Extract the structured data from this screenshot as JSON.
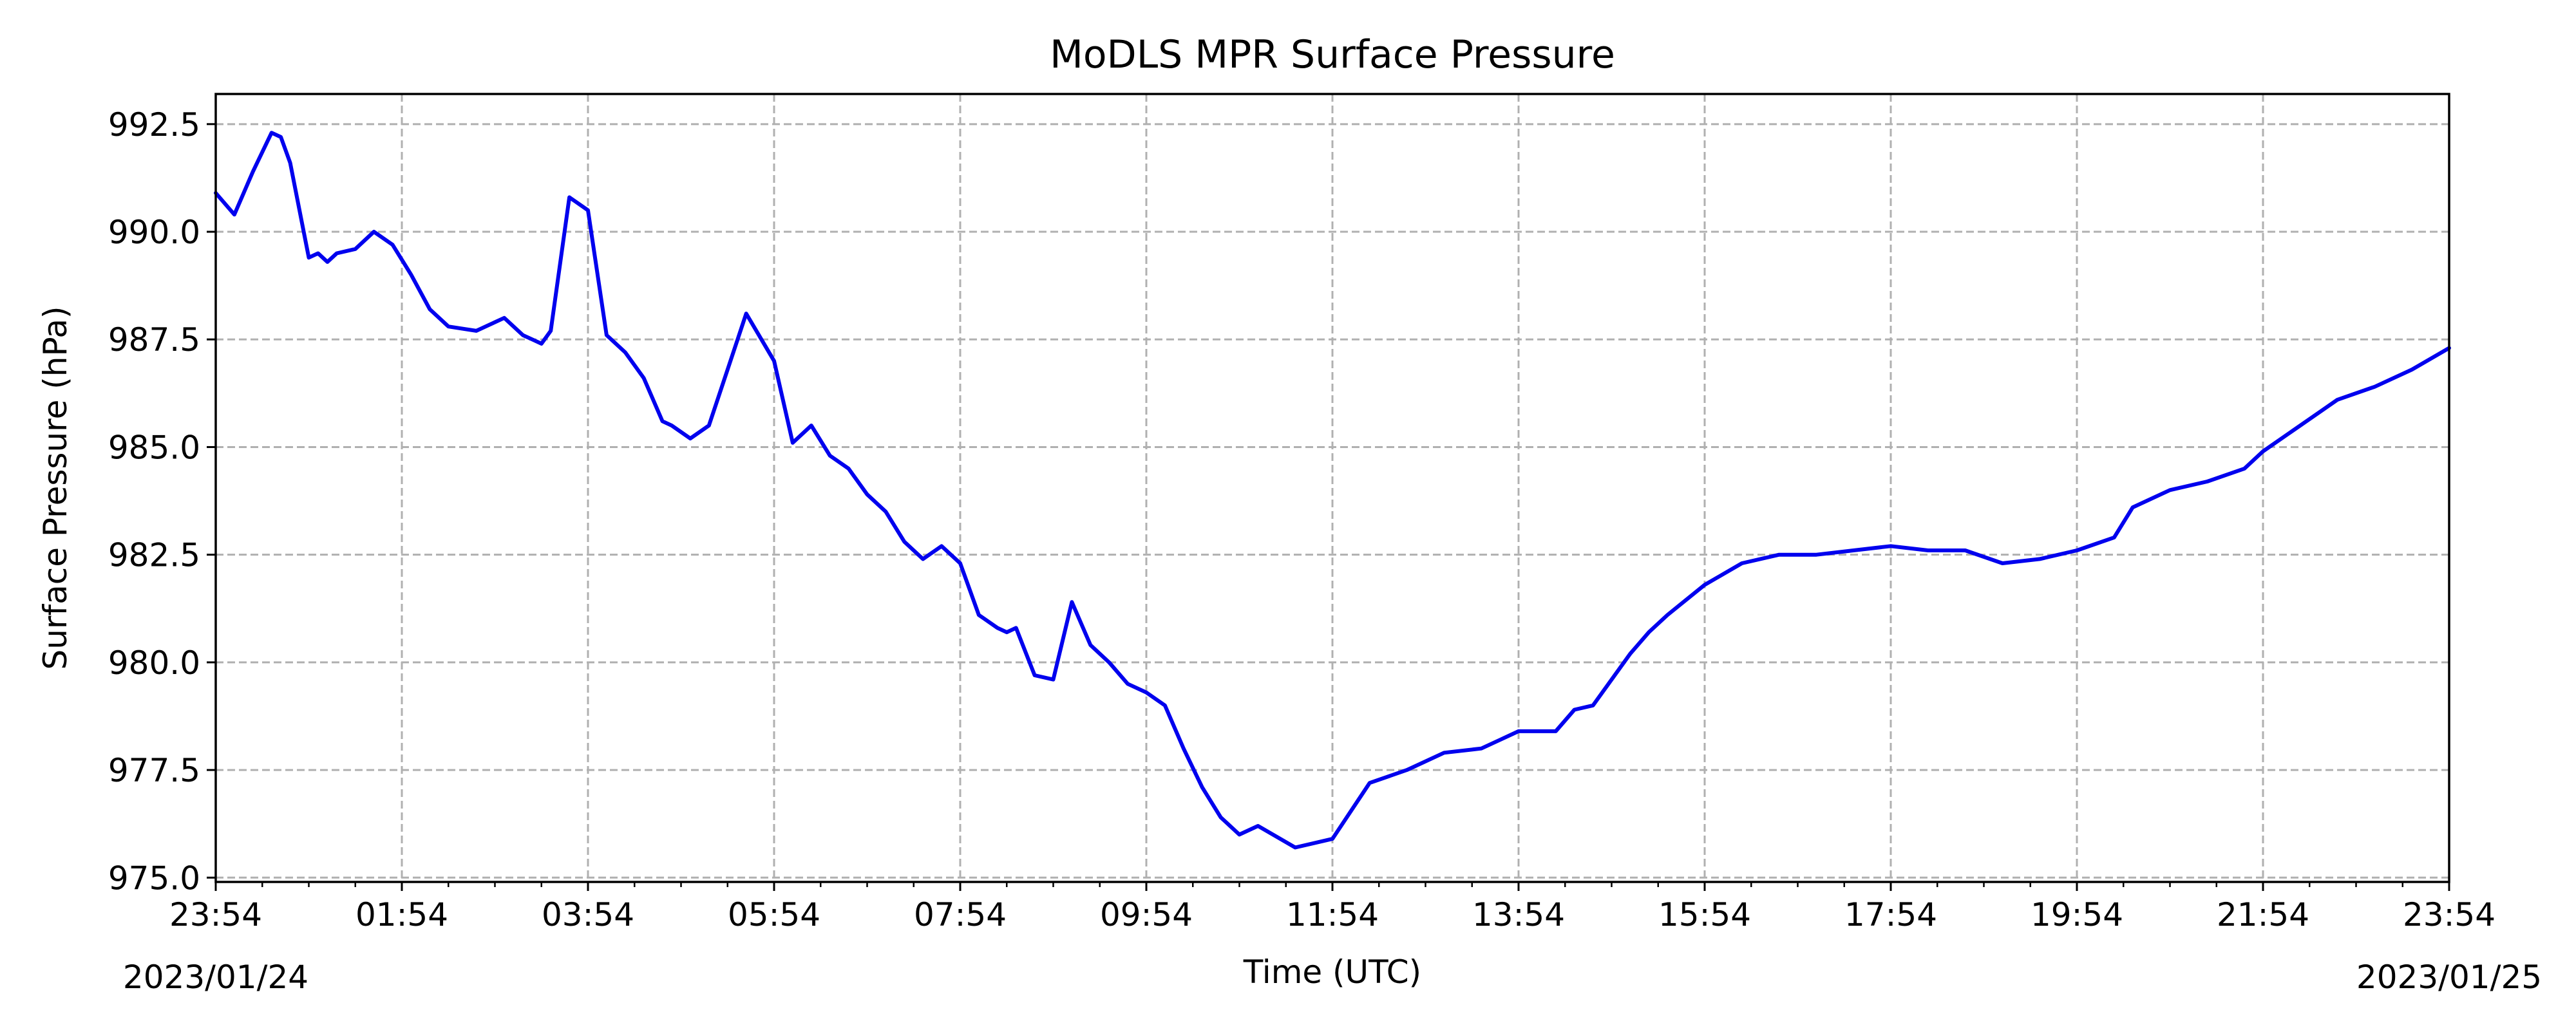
{
  "chart_data": {
    "type": "line",
    "title": "MoDLS MPR Surface Pressure",
    "xlabel": "Time (UTC)",
    "ylabel": "Surface Pressure (hPa)",
    "x_tick_labels": [
      "23:54",
      "01:54",
      "03:54",
      "05:54",
      "07:54",
      "09:54",
      "11:54",
      "13:54",
      "15:54",
      "17:54",
      "19:54",
      "21:54",
      "23:54"
    ],
    "date_labels": {
      "start": "2023/01/24",
      "end": "2023/01/25"
    },
    "y_tick_labels": [
      "975.0",
      "977.5",
      "980.0",
      "982.5",
      "985.0",
      "987.5",
      "990.0",
      "992.5"
    ],
    "xlim": [
      "2023-01-24T23:54",
      "2023-01-25T23:54"
    ],
    "ylim": [
      974.9,
      993.2
    ],
    "grid": true,
    "line_color": "#0000ee",
    "series": [
      {
        "x": [
          "2023-01-24T23:54",
          "2023-01-25T00:06",
          "2023-01-25T00:18",
          "2023-01-25T00:30",
          "2023-01-25T00:36",
          "2023-01-25T00:42",
          "2023-01-25T00:54",
          "2023-01-25T01:00",
          "2023-01-25T01:06",
          "2023-01-25T01:12",
          "2023-01-25T01:24",
          "2023-01-25T01:36",
          "2023-01-25T01:48",
          "2023-01-25T02:00",
          "2023-01-25T02:12",
          "2023-01-25T02:24",
          "2023-01-25T02:42",
          "2023-01-25T02:54",
          "2023-01-25T03:00",
          "2023-01-25T03:12",
          "2023-01-25T03:18",
          "2023-01-25T03:24",
          "2023-01-25T03:30",
          "2023-01-25T03:42",
          "2023-01-25T03:54",
          "2023-01-25T04:06",
          "2023-01-25T04:18",
          "2023-01-25T04:30",
          "2023-01-25T04:42",
          "2023-01-25T04:48",
          "2023-01-25T05:00",
          "2023-01-25T05:12",
          "2023-01-25T05:24",
          "2023-01-25T05:36",
          "2023-01-25T05:54",
          "2023-01-25T06:06",
          "2023-01-25T06:18",
          "2023-01-25T06:30",
          "2023-01-25T06:42",
          "2023-01-25T06:54",
          "2023-01-25T07:06",
          "2023-01-25T07:18",
          "2023-01-25T07:30",
          "2023-01-25T07:42",
          "2023-01-25T07:54",
          "2023-01-25T08:06",
          "2023-01-25T08:18",
          "2023-01-25T08:24",
          "2023-01-25T08:30",
          "2023-01-25T08:42",
          "2023-01-25T08:54",
          "2023-01-25T09:06",
          "2023-01-25T09:18",
          "2023-01-25T09:30",
          "2023-01-25T09:42",
          "2023-01-25T09:54",
          "2023-01-25T10:06",
          "2023-01-25T10:18",
          "2023-01-25T10:30",
          "2023-01-25T10:42",
          "2023-01-25T10:54",
          "2023-01-25T11:06",
          "2023-01-25T11:30",
          "2023-01-25T11:54",
          "2023-01-25T12:18",
          "2023-01-25T12:42",
          "2023-01-25T13:06",
          "2023-01-25T13:30",
          "2023-01-25T13:42",
          "2023-01-25T13:54",
          "2023-01-25T14:18",
          "2023-01-25T14:30",
          "2023-01-25T14:42",
          "2023-01-25T14:54",
          "2023-01-25T15:06",
          "2023-01-25T15:18",
          "2023-01-25T15:30",
          "2023-01-25T15:54",
          "2023-01-25T16:18",
          "2023-01-25T16:42",
          "2023-01-25T17:06",
          "2023-01-25T17:30",
          "2023-01-25T17:54",
          "2023-01-25T18:18",
          "2023-01-25T18:42",
          "2023-01-25T19:06",
          "2023-01-25T19:30",
          "2023-01-25T19:54",
          "2023-01-25T20:18",
          "2023-01-25T20:30",
          "2023-01-25T20:54",
          "2023-01-25T21:18",
          "2023-01-25T21:42",
          "2023-01-25T21:54",
          "2023-01-25T22:18",
          "2023-01-25T22:42",
          "2023-01-25T23:06",
          "2023-01-25T23:30",
          "2023-01-25T23:54"
        ],
        "y": [
          990.9,
          990.4,
          991.4,
          992.3,
          992.2,
          991.6,
          989.4,
          989.5,
          989.3,
          989.5,
          989.6,
          990.0,
          989.7,
          989.0,
          988.2,
          987.8,
          987.7,
          987.9,
          988.0,
          987.6,
          987.5,
          987.4,
          987.7,
          990.8,
          990.5,
          987.6,
          987.2,
          986.6,
          985.6,
          985.5,
          985.2,
          985.5,
          986.8,
          988.1,
          987.0,
          985.1,
          985.5,
          984.8,
          984.5,
          983.9,
          983.5,
          982.8,
          982.4,
          982.7,
          982.3,
          981.1,
          980.8,
          980.7,
          980.8,
          979.7,
          979.6,
          981.4,
          980.4,
          980.0,
          979.5,
          979.3,
          979.0,
          978.0,
          977.1,
          976.4,
          976.0,
          976.2,
          975.7,
          975.9,
          977.2,
          977.5,
          977.9,
          978.0,
          978.2,
          978.4,
          978.4,
          978.9,
          979.0,
          979.6,
          980.2,
          980.7,
          981.1,
          981.8,
          982.3,
          982.5,
          982.5,
          982.6,
          982.7,
          982.6,
          982.6,
          982.3,
          982.4,
          982.6,
          982.9,
          983.6,
          984.0,
          984.2,
          984.5,
          984.9,
          985.5,
          986.1,
          986.4,
          986.8,
          987.3
        ]
      }
    ]
  }
}
